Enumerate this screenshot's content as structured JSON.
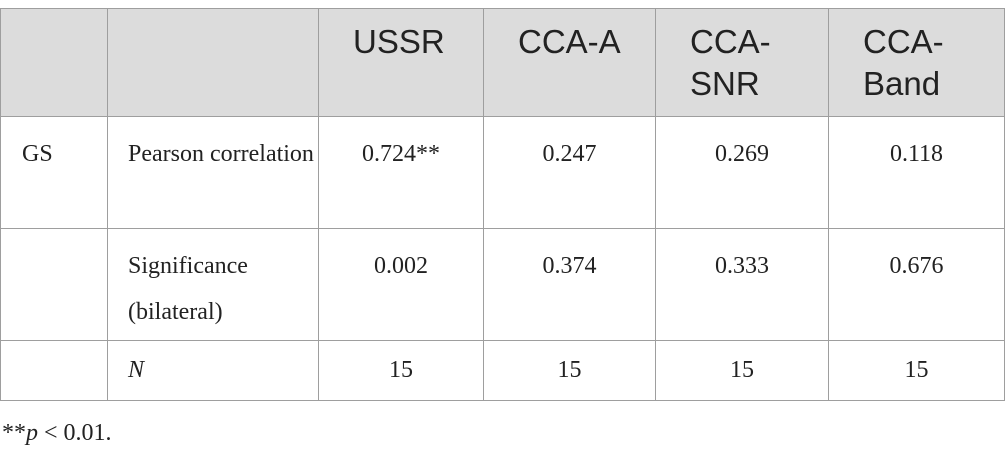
{
  "table": {
    "header": [
      "USSR",
      "CCA-A",
      "CCA-SNR",
      "CCA-Band"
    ],
    "rows": [
      {
        "group": "GS",
        "label": "Pearson correlation",
        "values": [
          "0.724**",
          0.247,
          0.269,
          0.118
        ]
      },
      {
        "label": "Significance (bilateral)",
        "values": [
          0.002,
          0.374,
          0.333,
          0.676
        ]
      },
      {
        "label": "N",
        "values": [
          15,
          15,
          15,
          15
        ]
      }
    ]
  },
  "footnote": {
    "stars": "**",
    "p": "p",
    "rest": " < 0.01."
  }
}
